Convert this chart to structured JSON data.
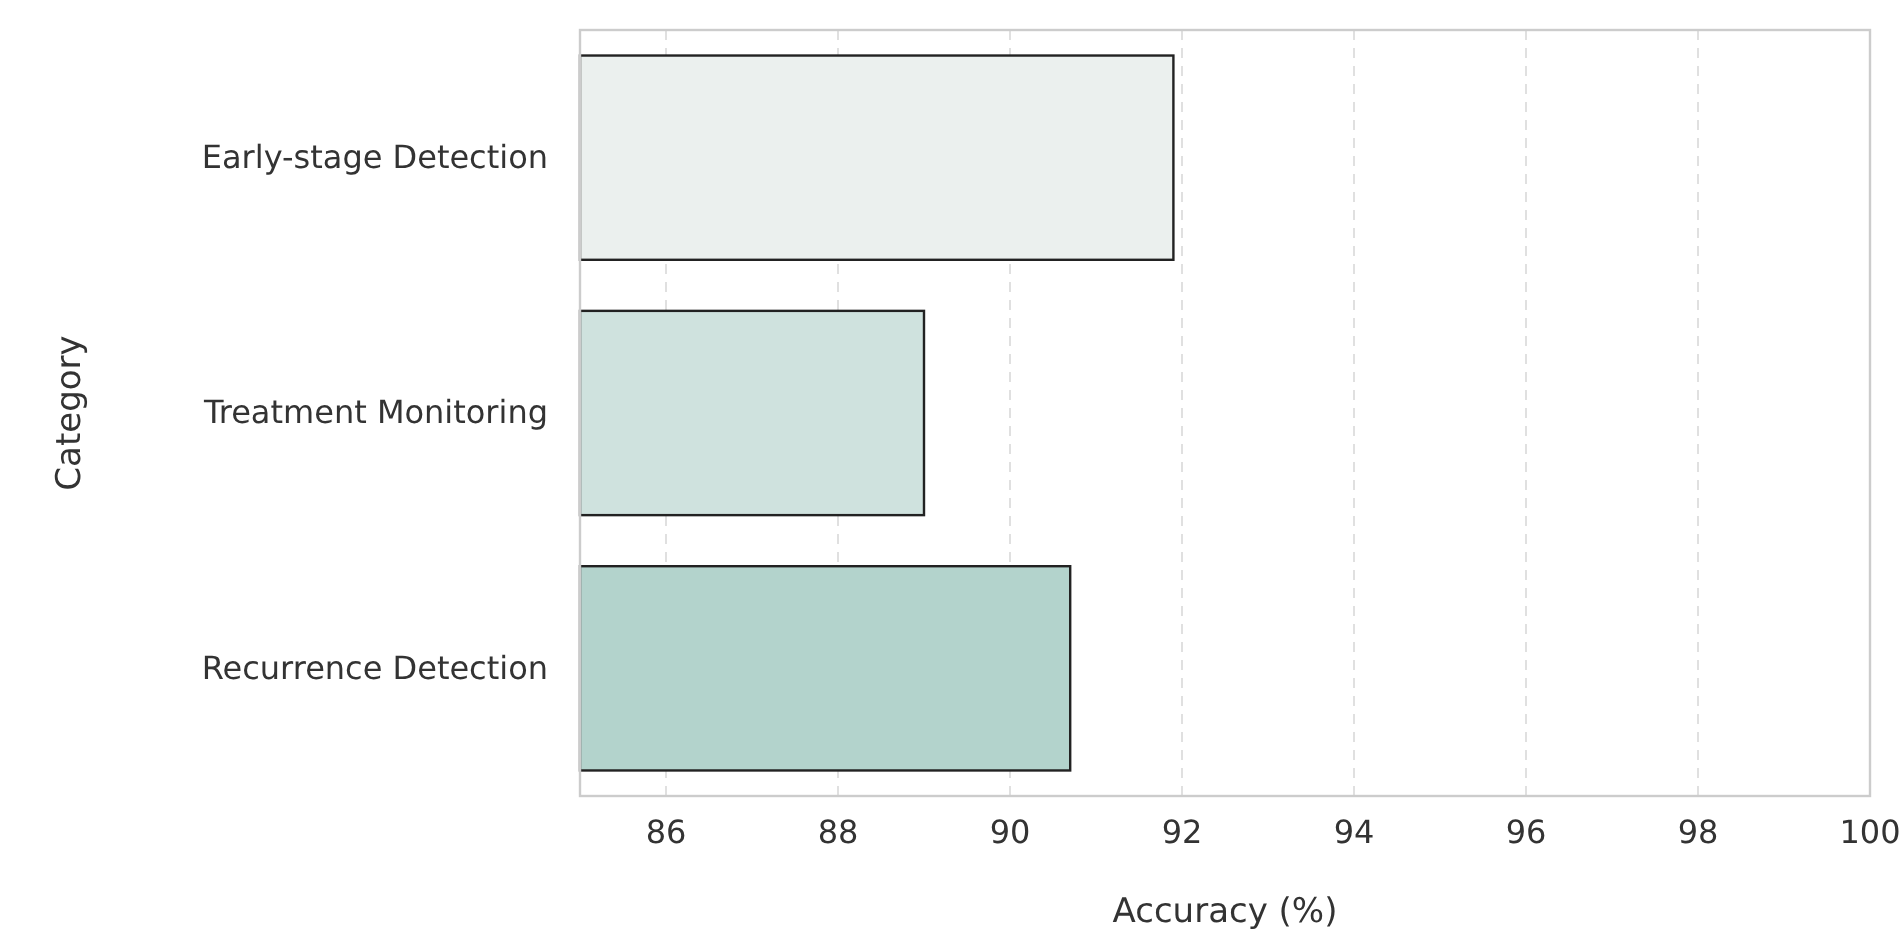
{
  "chart_data": {
    "type": "bar",
    "orientation": "horizontal",
    "xlabel": "Accuracy (%)",
    "ylabel": "Category",
    "categories": [
      "Early-stage Detection",
      "Treatment Monitoring",
      "Recurrence Detection"
    ],
    "values": [
      91.9,
      89.0,
      90.7
    ],
    "colors": [
      "#ebf0ee",
      "#cfe2de",
      "#b3d3cc"
    ],
    "xlim": [
      85,
      100
    ],
    "xticks": [
      86,
      88,
      90,
      92,
      94,
      96,
      98,
      100
    ],
    "grid": "x"
  }
}
